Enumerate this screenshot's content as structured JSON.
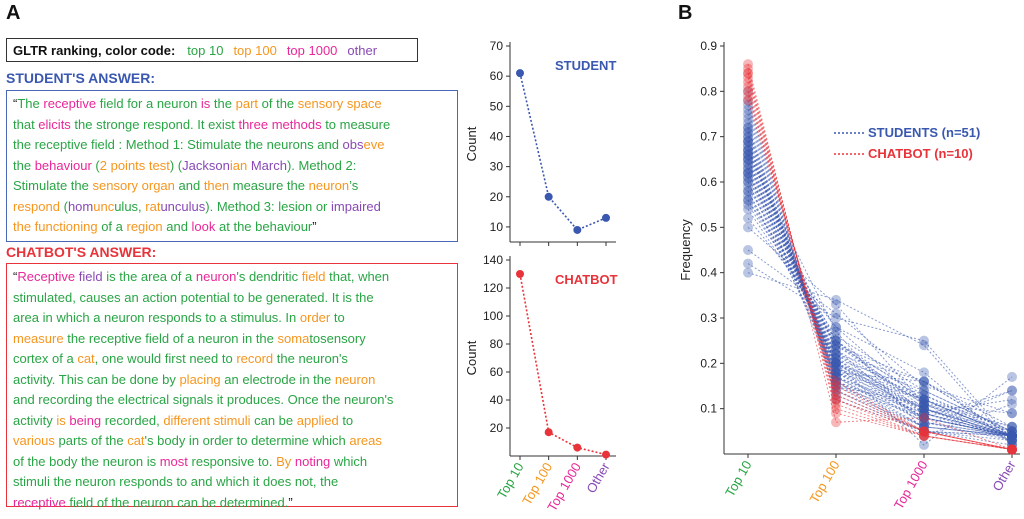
{
  "panels": {
    "a": "A",
    "b": "B"
  },
  "colors": {
    "top10": "#29a545",
    "top100": "#f6961e",
    "top1000": "#e8279a",
    "other": "#8849b5",
    "student": "#3a58b0",
    "chatbot": "#e8333a"
  },
  "legend": {
    "title": "GLTR ranking, color code:",
    "items": [
      {
        "label": "top 10",
        "color": "#29a545"
      },
      {
        "label": "top 100",
        "color": "#f6961e"
      },
      {
        "label": "top 1000",
        "color": "#e8279a"
      },
      {
        "label": "other",
        "color": "#8849b5"
      }
    ]
  },
  "student": {
    "title": "STUDENT'S ANSWER:",
    "tokens": [
      [
        "“",
        "k"
      ],
      [
        "The ",
        "g"
      ],
      [
        "receptive ",
        "p"
      ],
      [
        "field for a neuron ",
        "g"
      ],
      [
        "is ",
        "p"
      ],
      [
        "the ",
        "g"
      ],
      [
        "part ",
        "o"
      ],
      [
        "of the ",
        "g"
      ],
      [
        "sensory space",
        "o"
      ],
      [
        "\n",
        ""
      ],
      [
        "that ",
        "g"
      ],
      [
        "elicits ",
        "p"
      ],
      [
        "the stronge respond. It exist ",
        "g"
      ],
      [
        "three methods ",
        "p"
      ],
      [
        "to measure",
        "g"
      ],
      [
        "\n",
        ""
      ],
      [
        "the receptive field : Method 1: Stimulate the neurons and ",
        "g"
      ],
      [
        "obs",
        "v"
      ],
      [
        "eve",
        "o"
      ],
      [
        "\n",
        ""
      ],
      [
        "the ",
        "g"
      ],
      [
        "behaviour ",
        "p"
      ],
      [
        "(",
        "g"
      ],
      [
        "2 points test",
        "o"
      ],
      [
        ") (",
        "g"
      ],
      [
        "Jackson",
        "v"
      ],
      [
        "ian ",
        "o"
      ],
      [
        "March",
        "v"
      ],
      [
        "). Method 2:",
        "g"
      ],
      [
        "\n",
        ""
      ],
      [
        "Stimulate the ",
        "g"
      ],
      [
        "sensory organ ",
        "o"
      ],
      [
        "and ",
        "g"
      ],
      [
        "then ",
        "o"
      ],
      [
        "measure the ",
        "g"
      ],
      [
        "neuron",
        "o"
      ],
      [
        "’s",
        "g"
      ],
      [
        "\n",
        ""
      ],
      [
        "respond ",
        "o"
      ],
      [
        "(",
        "g"
      ],
      [
        "hom",
        "v"
      ],
      [
        "unc",
        "o"
      ],
      [
        "ulus, ",
        "g"
      ],
      [
        "rat",
        "o"
      ],
      [
        "unculus",
        "v"
      ],
      [
        "). Method 3: lesion or ",
        "g"
      ],
      [
        "impaired",
        "v"
      ],
      [
        "\n",
        ""
      ],
      [
        "the functioning ",
        "o"
      ],
      [
        "of a ",
        "g"
      ],
      [
        "region ",
        "o"
      ],
      [
        "and ",
        "g"
      ],
      [
        "look ",
        "p"
      ],
      [
        "at the behaviour",
        "g"
      ],
      [
        "”",
        "k"
      ]
    ]
  },
  "chatbot": {
    "title": "CHATBOT'S ANSWER:",
    "tokens": [
      [
        "“",
        "k"
      ],
      [
        "Receptive ",
        "p"
      ],
      [
        "field ",
        "v"
      ],
      [
        "is the area of a ",
        "g"
      ],
      [
        "neuron",
        "p"
      ],
      [
        "'s dendritic ",
        "g"
      ],
      [
        "field ",
        "o"
      ],
      [
        "that, when",
        "g"
      ],
      [
        "\n",
        ""
      ],
      [
        "stimulated, causes an action potential to be generated. It is the",
        "g"
      ],
      [
        "\n",
        ""
      ],
      [
        "area in which a neuron responds to a stimulus. In ",
        "g"
      ],
      [
        "order ",
        "o"
      ],
      [
        "to",
        "g"
      ],
      [
        "\n",
        ""
      ],
      [
        "measure ",
        "o"
      ],
      [
        "the receptive field of a neuron in the ",
        "g"
      ],
      [
        "soma",
        "o"
      ],
      [
        "tosensory",
        "g"
      ],
      [
        "\n",
        ""
      ],
      [
        "cortex of a ",
        "g"
      ],
      [
        "cat",
        "o"
      ],
      [
        ", one would first need to ",
        "g"
      ],
      [
        "record ",
        "o"
      ],
      [
        "the neuron's",
        "g"
      ],
      [
        "\n",
        ""
      ],
      [
        "activity. This can be done by ",
        "g"
      ],
      [
        "placing ",
        "o"
      ],
      [
        "an electrode in the ",
        "g"
      ],
      [
        "neuron",
        "o"
      ],
      [
        "\n",
        ""
      ],
      [
        "and recording the electrical signals it produces. Once the neuron's",
        "g"
      ],
      [
        "\n",
        ""
      ],
      [
        "activity ",
        "g"
      ],
      [
        "is ",
        "o"
      ],
      [
        "being ",
        "p"
      ],
      [
        "recorded, ",
        "g"
      ],
      [
        "different stimuli ",
        "o"
      ],
      [
        "can be ",
        "g"
      ],
      [
        "applied ",
        "o"
      ],
      [
        "to",
        "g"
      ],
      [
        "\n",
        ""
      ],
      [
        "various ",
        "o"
      ],
      [
        "parts of the ",
        "g"
      ],
      [
        "cat",
        "o"
      ],
      [
        "'s body in order to determine which ",
        "g"
      ],
      [
        "areas",
        "o"
      ],
      [
        "\n",
        ""
      ],
      [
        "of the body the neuron is ",
        "g"
      ],
      [
        "most ",
        "p"
      ],
      [
        "responsive to. ",
        "g"
      ],
      [
        "By ",
        "o"
      ],
      [
        "noting ",
        "p"
      ],
      [
        "which",
        "g"
      ],
      [
        "\n",
        ""
      ],
      [
        "stimuli the neuron responds to and which it does not, the",
        "g"
      ],
      [
        "\n",
        ""
      ],
      [
        "receptive ",
        "p"
      ],
      [
        "field of the neuron can be determined.",
        "g"
      ],
      [
        "”",
        "k"
      ]
    ]
  },
  "chart_data": [
    {
      "type": "line",
      "label": "STUDENT",
      "categories": [
        "Top 10",
        "Top 100",
        "Top 1000",
        "Other"
      ],
      "values": [
        61,
        20,
        9,
        13
      ],
      "ylabel": "Count",
      "ylim": [
        5,
        70
      ],
      "yticks": [
        10,
        20,
        30,
        40,
        50,
        60,
        70
      ],
      "color": "#3a58b0"
    },
    {
      "type": "line",
      "label": "CHATBOT",
      "categories": [
        "Top 10",
        "Top 100",
        "Top 1000",
        "Other"
      ],
      "values": [
        130,
        17,
        6,
        1
      ],
      "ylabel": "Count",
      "ylim": [
        0,
        140
      ],
      "yticks": [
        20,
        40,
        60,
        80,
        100,
        120,
        140
      ],
      "color": "#e8333a"
    },
    {
      "type": "line",
      "categories": [
        "Top 10",
        "Top 100",
        "Top 1000",
        "Other"
      ],
      "ylabel": "Frequency",
      "ylim": [
        0,
        0.9
      ],
      "yticks": [
        0.1,
        0.2,
        0.3,
        0.4,
        0.5,
        0.6,
        0.7,
        0.8,
        0.9
      ],
      "legend": [
        {
          "label": "STUDENTS (n=51)",
          "color": "#3a58b0"
        },
        {
          "label": "CHATBOT (n=10)",
          "color": "#e8333a"
        }
      ],
      "series": [
        {
          "group": "student",
          "values": [
            0.66,
            0.27,
            0.05,
            0.02
          ]
        },
        {
          "group": "student",
          "values": [
            0.4,
            0.34,
            0.24,
            0.02
          ]
        },
        {
          "group": "student",
          "values": [
            0.42,
            0.3,
            0.25,
            0.03
          ]
        },
        {
          "group": "student",
          "values": [
            0.45,
            0.31,
            0.15,
            0.09
          ]
        },
        {
          "group": "student",
          "values": [
            0.52,
            0.28,
            0.18,
            0.02
          ]
        },
        {
          "group": "student",
          "values": [
            0.55,
            0.26,
            0.14,
            0.05
          ]
        },
        {
          "group": "student",
          "values": [
            0.56,
            0.24,
            0.16,
            0.04
          ]
        },
        {
          "group": "student",
          "values": [
            0.57,
            0.25,
            0.12,
            0.06
          ]
        },
        {
          "group": "student",
          "values": [
            0.58,
            0.22,
            0.16,
            0.04
          ]
        },
        {
          "group": "student",
          "values": [
            0.59,
            0.24,
            0.13,
            0.04
          ]
        },
        {
          "group": "student",
          "values": [
            0.6,
            0.21,
            0.14,
            0.05
          ]
        },
        {
          "group": "student",
          "values": [
            0.61,
            0.24,
            0.11,
            0.04
          ]
        },
        {
          "group": "student",
          "values": [
            0.62,
            0.22,
            0.12,
            0.04
          ]
        },
        {
          "group": "student",
          "values": [
            0.62,
            0.2,
            0.13,
            0.05
          ]
        },
        {
          "group": "student",
          "values": [
            0.63,
            0.23,
            0.11,
            0.03
          ]
        },
        {
          "group": "student",
          "values": [
            0.64,
            0.2,
            0.12,
            0.04
          ]
        },
        {
          "group": "student",
          "values": [
            0.64,
            0.21,
            0.1,
            0.05
          ]
        },
        {
          "group": "student",
          "values": [
            0.65,
            0.19,
            0.12,
            0.04
          ]
        },
        {
          "group": "student",
          "values": [
            0.65,
            0.22,
            0.09,
            0.04
          ]
        },
        {
          "group": "student",
          "values": [
            0.66,
            0.18,
            0.12,
            0.04
          ]
        },
        {
          "group": "student",
          "values": [
            0.66,
            0.2,
            0.1,
            0.04
          ]
        },
        {
          "group": "student",
          "values": [
            0.67,
            0.19,
            0.1,
            0.04
          ]
        },
        {
          "group": "student",
          "values": [
            0.67,
            0.21,
            0.08,
            0.04
          ]
        },
        {
          "group": "student",
          "values": [
            0.68,
            0.18,
            0.1,
            0.04
          ]
        },
        {
          "group": "student",
          "values": [
            0.68,
            0.2,
            0.09,
            0.03
          ]
        },
        {
          "group": "student",
          "values": [
            0.69,
            0.17,
            0.1,
            0.04
          ]
        },
        {
          "group": "student",
          "values": [
            0.69,
            0.19,
            0.08,
            0.04
          ]
        },
        {
          "group": "student",
          "values": [
            0.7,
            0.17,
            0.09,
            0.04
          ]
        },
        {
          "group": "student",
          "values": [
            0.7,
            0.18,
            0.08,
            0.04
          ]
        },
        {
          "group": "student",
          "values": [
            0.71,
            0.16,
            0.09,
            0.04
          ]
        },
        {
          "group": "student",
          "values": [
            0.71,
            0.18,
            0.07,
            0.04
          ]
        },
        {
          "group": "student",
          "values": [
            0.72,
            0.16,
            0.08,
            0.04
          ]
        },
        {
          "group": "student",
          "values": [
            0.72,
            0.17,
            0.07,
            0.04
          ]
        },
        {
          "group": "student",
          "values": [
            0.73,
            0.15,
            0.08,
            0.04
          ]
        },
        {
          "group": "student",
          "values": [
            0.74,
            0.16,
            0.06,
            0.04
          ]
        },
        {
          "group": "student",
          "values": [
            0.75,
            0.15,
            0.06,
            0.04
          ]
        },
        {
          "group": "student",
          "values": [
            0.76,
            0.14,
            0.06,
            0.04
          ]
        },
        {
          "group": "student",
          "values": [
            0.77,
            0.14,
            0.05,
            0.04
          ]
        },
        {
          "group": "student",
          "values": [
            0.78,
            0.13,
            0.05,
            0.04
          ]
        },
        {
          "group": "student",
          "values": [
            0.8,
            0.12,
            0.05,
            0.03
          ]
        },
        {
          "group": "student",
          "values": [
            0.62,
            0.25,
            0.1,
            0.03
          ]
        },
        {
          "group": "student",
          "values": [
            0.6,
            0.18,
            0.16,
            0.06
          ]
        },
        {
          "group": "student",
          "values": [
            0.58,
            0.2,
            0.08,
            0.14
          ]
        },
        {
          "group": "student",
          "values": [
            0.63,
            0.17,
            0.06,
            0.14
          ]
        },
        {
          "group": "student",
          "values": [
            0.54,
            0.25,
            0.09,
            0.12
          ]
        },
        {
          "group": "student",
          "values": [
            0.61,
            0.2,
            0.02,
            0.17
          ]
        },
        {
          "group": "student",
          "values": [
            0.65,
            0.15,
            0.11,
            0.09
          ]
        },
        {
          "group": "student",
          "values": [
            0.5,
            0.33,
            0.11,
            0.06
          ]
        },
        {
          "group": "student",
          "values": [
            0.67,
            0.23,
            0.07,
            0.03
          ]
        },
        {
          "group": "student",
          "values": [
            0.56,
            0.28,
            0.11,
            0.05
          ]
        },
        {
          "group": "student",
          "values": [
            0.69,
            0.16,
            0.04,
            0.11
          ]
        },
        {
          "group": "chatbot",
          "values": [
            0.86,
            0.09,
            0.04,
            0.01
          ]
        },
        {
          "group": "chatbot",
          "values": [
            0.85,
            0.1,
            0.04,
            0.01
          ]
        },
        {
          "group": "chatbot",
          "values": [
            0.84,
            0.11,
            0.04,
            0.01
          ]
        },
        {
          "group": "chatbot",
          "values": [
            0.83,
            0.12,
            0.04,
            0.01
          ]
        },
        {
          "group": "chatbot",
          "values": [
            0.82,
            0.12,
            0.05,
            0.01
          ]
        },
        {
          "group": "chatbot",
          "values": [
            0.81,
            0.13,
            0.05,
            0.01
          ]
        },
        {
          "group": "chatbot",
          "values": [
            0.8,
            0.14,
            0.05,
            0.01
          ]
        },
        {
          "group": "chatbot",
          "values": [
            0.79,
            0.15,
            0.05,
            0.01
          ]
        },
        {
          "group": "chatbot",
          "values": [
            0.78,
            0.16,
            0.05,
            0.01
          ]
        },
        {
          "group": "chatbot",
          "values": [
            0.84,
            0.07,
            0.08,
            0.01
          ]
        }
      ]
    }
  ]
}
